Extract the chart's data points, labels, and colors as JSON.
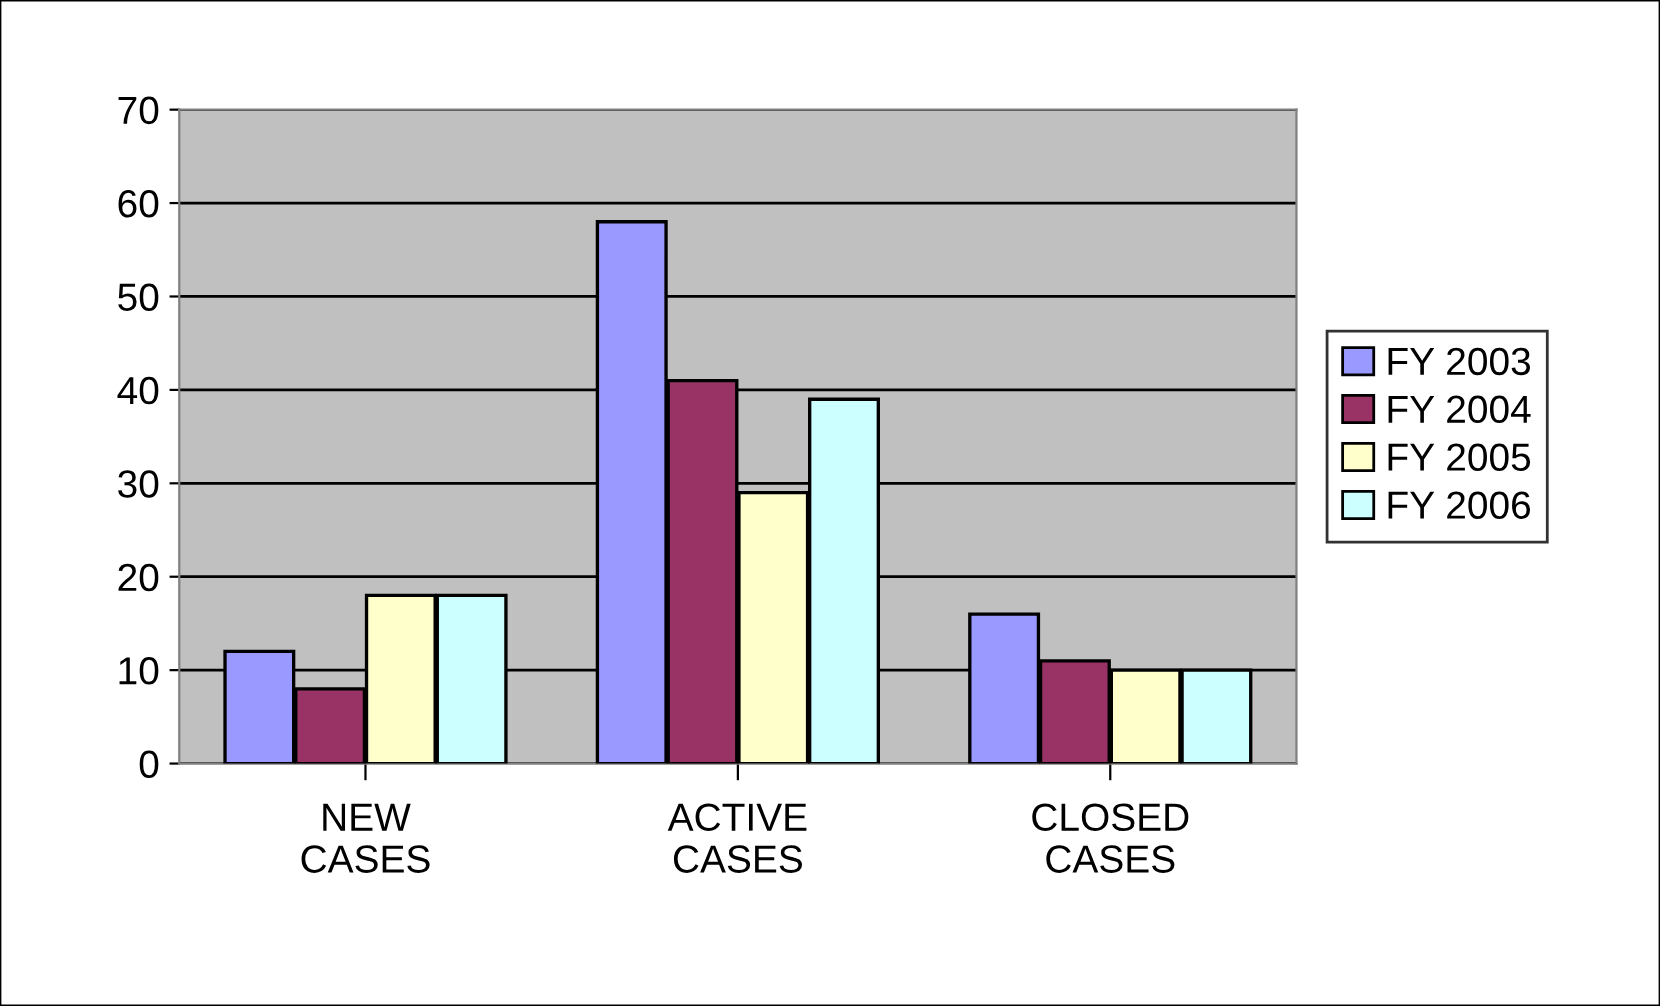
{
  "chart_data": {
    "type": "bar",
    "categories": [
      "NEW\nCASES",
      "ACTIVE\nCASES",
      "CLOSED\nCASES"
    ],
    "series": [
      {
        "name": "FY 2003",
        "color": "#9999ff",
        "values": [
          12,
          58,
          16
        ]
      },
      {
        "name": "FY 2004",
        "color": "#993366",
        "values": [
          8,
          41,
          11
        ]
      },
      {
        "name": "FY 2005",
        "color": "#ffffcc",
        "values": [
          18,
          29,
          10
        ]
      },
      {
        "name": "FY 2006",
        "color": "#ccffff",
        "values": [
          18,
          39,
          10
        ]
      }
    ],
    "ylim": [
      0,
      70
    ],
    "yticks": [
      0,
      10,
      20,
      30,
      40,
      50,
      60,
      70
    ],
    "grid": "y",
    "legend": "right"
  }
}
